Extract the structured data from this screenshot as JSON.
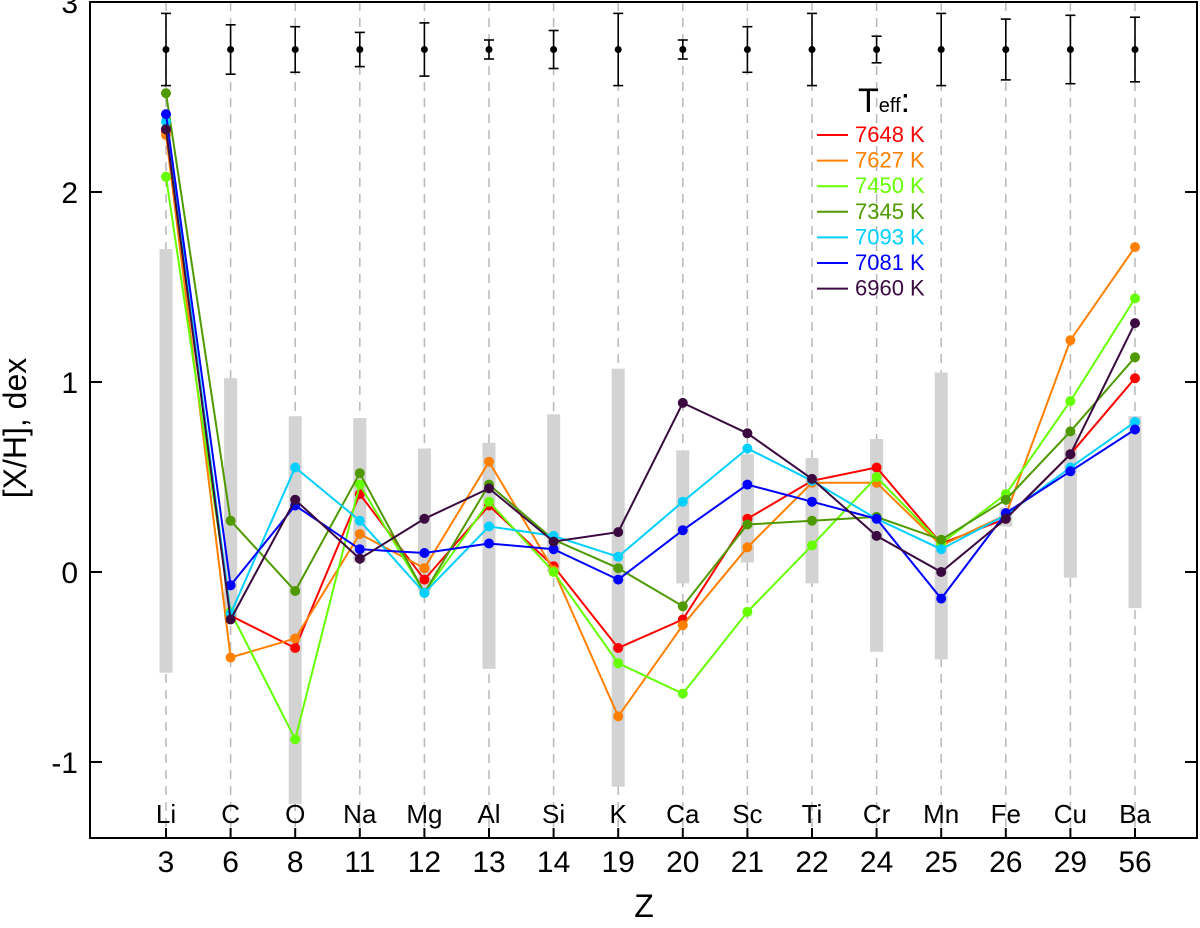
{
  "chart_data": {
    "type": "line",
    "title": "",
    "xlabel": "Z",
    "ylabel": "[X/H], dex",
    "ylim": [
      -1.4,
      3.0
    ],
    "yticks": [
      -1,
      0,
      1,
      2,
      3
    ],
    "categories": [
      "3",
      "6",
      "8",
      "11",
      "12",
      "13",
      "14",
      "19",
      "20",
      "21",
      "22",
      "24",
      "25",
      "26",
      "29",
      "56"
    ],
    "elements": [
      "Li",
      "C",
      "O",
      "Na",
      "Mg",
      "Al",
      "Si",
      "K",
      "Ca",
      "Sc",
      "Ti",
      "Cr",
      "Mn",
      "Fe",
      "Cu",
      "Ba"
    ],
    "legend_title": "Teff:",
    "legend_title_main": "T",
    "legend_title_sub": "eff",
    "legend_title_colon": ":",
    "legend_position": "top-right",
    "grey_ranges": [
      [
        -0.53,
        1.7
      ],
      [
        -0.25,
        1.02
      ],
      [
        -1.22,
        0.82
      ],
      [
        0.05,
        0.81
      ],
      [
        -0.1,
        0.65
      ],
      [
        -0.51,
        0.68
      ],
      [
        0.0,
        0.83
      ],
      [
        -1.13,
        1.07
      ],
      [
        -0.06,
        0.64
      ],
      [
        0.05,
        0.62
      ],
      [
        -0.06,
        0.6
      ],
      [
        -0.42,
        0.7
      ],
      [
        -0.46,
        1.05
      ],
      [
        0.24,
        0.34
      ],
      [
        -0.03,
        0.73
      ],
      [
        -0.19,
        0.82
      ]
    ],
    "error_bars": {
      "y": 2.75,
      "err": [
        0.19,
        0.13,
        0.12,
        0.09,
        0.14,
        0.05,
        0.1,
        0.19,
        0.05,
        0.12,
        0.19,
        0.07,
        0.19,
        0.16,
        0.18,
        0.17
      ]
    },
    "series": [
      {
        "name": "7648 K",
        "color": "#ff0000",
        "values": [
          2.32,
          -0.23,
          -0.4,
          0.41,
          -0.04,
          0.35,
          0.03,
          -0.4,
          -0.25,
          0.28,
          0.48,
          0.55,
          0.15,
          0.28,
          0.62,
          1.02
        ]
      },
      {
        "name": "7627 K",
        "color": "#ff8000",
        "values": [
          2.3,
          -0.45,
          -0.35,
          0.2,
          0.02,
          0.58,
          0.01,
          -0.76,
          -0.28,
          0.13,
          0.47,
          0.47,
          0.14,
          0.3,
          1.22,
          1.71
        ]
      },
      {
        "name": "7450 K",
        "color": "#66ff00",
        "values": [
          2.08,
          -0.21,
          -0.88,
          0.46,
          -0.11,
          0.37,
          0.0,
          -0.48,
          -0.64,
          -0.21,
          0.14,
          0.5,
          0.15,
          0.41,
          0.9,
          1.44
        ]
      },
      {
        "name": "7345 K",
        "color": "#4f9a00",
        "values": [
          2.52,
          0.27,
          -0.1,
          0.52,
          -0.11,
          0.46,
          0.17,
          0.02,
          -0.18,
          0.25,
          0.27,
          0.29,
          0.17,
          0.38,
          0.74,
          1.13
        ]
      },
      {
        "name": "7093 K",
        "color": "#00d0ff",
        "values": [
          2.37,
          -0.22,
          0.55,
          0.27,
          -0.11,
          0.24,
          0.19,
          0.08,
          0.37,
          0.65,
          0.48,
          0.28,
          0.12,
          0.3,
          0.55,
          0.79
        ]
      },
      {
        "name": "7081 K",
        "color": "#0000ff",
        "values": [
          2.41,
          -0.07,
          0.35,
          0.12,
          0.1,
          0.15,
          0.12,
          -0.04,
          0.22,
          0.46,
          0.37,
          0.28,
          -0.14,
          0.31,
          0.53,
          0.75
        ]
      },
      {
        "name": "6960 K",
        "color": "#3a0a40",
        "values": [
          2.33,
          -0.25,
          0.38,
          0.07,
          0.28,
          0.44,
          0.16,
          0.21,
          0.89,
          0.73,
          0.49,
          0.19,
          0.0,
          0.28,
          0.62,
          1.31
        ]
      }
    ]
  }
}
